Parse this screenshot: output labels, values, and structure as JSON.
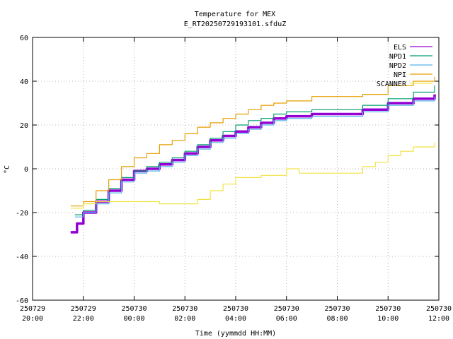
{
  "chart_data": {
    "type": "line",
    "title": "Temperature for MEX",
    "subtitle": "E_RT20250729193101.sfduZ",
    "xlabel": "Time (yymmdd HH:MM)",
    "ylabel": "°C",
    "ylim": [
      -60,
      60
    ],
    "yticks": [
      -60,
      -40,
      -20,
      0,
      20,
      40,
      60
    ],
    "xlim": [
      "2025-07-29 20:00",
      "2025-07-30 12:00"
    ],
    "xticks": [
      {
        "t": "2025-07-29 20:00",
        "l1": "250729",
        "l2": "20:00"
      },
      {
        "t": "2025-07-29 22:00",
        "l1": "250729",
        "l2": "22:00"
      },
      {
        "t": "2025-07-30 00:00",
        "l1": "250730",
        "l2": "00:00"
      },
      {
        "t": "2025-07-30 02:00",
        "l1": "250730",
        "l2": "02:00"
      },
      {
        "t": "2025-07-30 04:00",
        "l1": "250730",
        "l2": "04:00"
      },
      {
        "t": "2025-07-30 06:00",
        "l1": "250730",
        "l2": "06:00"
      },
      {
        "t": "2025-07-30 08:00",
        "l1": "250730",
        "l2": "08:00"
      },
      {
        "t": "2025-07-30 10:00",
        "l1": "250730",
        "l2": "10:00"
      },
      {
        "t": "2025-07-30 12:00",
        "l1": "250730",
        "l2": "12:00"
      }
    ],
    "grid": true,
    "legend": "top-right",
    "series": [
      {
        "name": "ELS",
        "color": "#9400d3",
        "width": 3.5,
        "values": [
          [
            "2025-07-29 21:30",
            -29
          ],
          [
            "2025-07-29 21:45",
            -25
          ],
          [
            "2025-07-29 22:00",
            -20
          ],
          [
            "2025-07-29 22:30",
            -15
          ],
          [
            "2025-07-29 23:00",
            -10
          ],
          [
            "2025-07-29 23:30",
            -5
          ],
          [
            "2025-07-30 00:00",
            -1
          ],
          [
            "2025-07-30 00:30",
            0
          ],
          [
            "2025-07-30 01:00",
            2
          ],
          [
            "2025-07-30 01:30",
            4
          ],
          [
            "2025-07-30 02:00",
            7
          ],
          [
            "2025-07-30 02:30",
            10
          ],
          [
            "2025-07-30 03:00",
            13
          ],
          [
            "2025-07-30 03:30",
            15
          ],
          [
            "2025-07-30 04:00",
            17
          ],
          [
            "2025-07-30 04:30",
            19
          ],
          [
            "2025-07-30 05:00",
            21
          ],
          [
            "2025-07-30 05:30",
            23
          ],
          [
            "2025-07-30 06:00",
            24
          ],
          [
            "2025-07-30 07:00",
            25
          ],
          [
            "2025-07-30 08:00",
            25
          ],
          [
            "2025-07-30 09:00",
            27
          ],
          [
            "2025-07-30 10:00",
            30
          ],
          [
            "2025-07-30 11:00",
            32
          ],
          [
            "2025-07-30 11:50",
            34
          ]
        ]
      },
      {
        "name": "NPD1",
        "color": "#009e73",
        "width": 1.2,
        "values": [
          [
            "2025-07-29 21:40",
            -21
          ],
          [
            "2025-07-29 22:00",
            -19
          ],
          [
            "2025-07-29 22:30",
            -14
          ],
          [
            "2025-07-29 23:00",
            -9
          ],
          [
            "2025-07-29 23:30",
            -4
          ],
          [
            "2025-07-30 00:00",
            -1
          ],
          [
            "2025-07-30 00:30",
            1
          ],
          [
            "2025-07-30 01:00",
            3
          ],
          [
            "2025-07-30 01:30",
            5
          ],
          [
            "2025-07-30 02:00",
            8
          ],
          [
            "2025-07-30 02:30",
            11
          ],
          [
            "2025-07-30 03:00",
            14
          ],
          [
            "2025-07-30 03:30",
            17
          ],
          [
            "2025-07-30 04:00",
            20
          ],
          [
            "2025-07-30 04:30",
            22
          ],
          [
            "2025-07-30 05:00",
            23
          ],
          [
            "2025-07-30 05:30",
            25
          ],
          [
            "2025-07-30 06:00",
            26
          ],
          [
            "2025-07-30 07:00",
            27
          ],
          [
            "2025-07-30 08:00",
            27
          ],
          [
            "2025-07-30 09:00",
            29
          ],
          [
            "2025-07-30 10:00",
            32
          ],
          [
            "2025-07-30 11:00",
            35
          ],
          [
            "2025-07-30 11:50",
            38
          ]
        ]
      },
      {
        "name": "NPD2",
        "color": "#56b4e9",
        "width": 1.2,
        "values": [
          [
            "2025-07-29 21:40",
            -22
          ],
          [
            "2025-07-29 22:00",
            -20
          ],
          [
            "2025-07-29 22:30",
            -16
          ],
          [
            "2025-07-29 23:00",
            -11
          ],
          [
            "2025-07-29 23:30",
            -6
          ],
          [
            "2025-07-30 00:00",
            -2
          ],
          [
            "2025-07-30 00:30",
            -1
          ],
          [
            "2025-07-30 01:00",
            1
          ],
          [
            "2025-07-30 01:30",
            3
          ],
          [
            "2025-07-30 02:00",
            6
          ],
          [
            "2025-07-30 02:30",
            9
          ],
          [
            "2025-07-30 03:00",
            12
          ],
          [
            "2025-07-30 03:30",
            14
          ],
          [
            "2025-07-30 04:00",
            16
          ],
          [
            "2025-07-30 04:30",
            18
          ],
          [
            "2025-07-30 05:00",
            20
          ],
          [
            "2025-07-30 05:30",
            22
          ],
          [
            "2025-07-30 06:00",
            23
          ],
          [
            "2025-07-30 07:00",
            24
          ],
          [
            "2025-07-30 08:00",
            24
          ],
          [
            "2025-07-30 09:00",
            26
          ],
          [
            "2025-07-30 10:00",
            29
          ],
          [
            "2025-07-30 11:00",
            31
          ],
          [
            "2025-07-30 11:50",
            33
          ]
        ]
      },
      {
        "name": "NPI",
        "color": "#e69f00",
        "width": 1.2,
        "values": [
          [
            "2025-07-29 21:30",
            -17
          ],
          [
            "2025-07-29 22:00",
            -15
          ],
          [
            "2025-07-29 22:30",
            -10
          ],
          [
            "2025-07-29 23:00",
            -5
          ],
          [
            "2025-07-29 23:30",
            1
          ],
          [
            "2025-07-30 00:00",
            5
          ],
          [
            "2025-07-30 00:30",
            7
          ],
          [
            "2025-07-30 01:00",
            11
          ],
          [
            "2025-07-30 01:30",
            13
          ],
          [
            "2025-07-30 02:00",
            16
          ],
          [
            "2025-07-30 02:30",
            19
          ],
          [
            "2025-07-30 03:00",
            21
          ],
          [
            "2025-07-30 03:30",
            23
          ],
          [
            "2025-07-30 04:00",
            25
          ],
          [
            "2025-07-30 04:30",
            27
          ],
          [
            "2025-07-30 05:00",
            29
          ],
          [
            "2025-07-30 05:30",
            30
          ],
          [
            "2025-07-30 06:00",
            31
          ],
          [
            "2025-07-30 07:00",
            33
          ],
          [
            "2025-07-30 08:00",
            33
          ],
          [
            "2025-07-30 09:00",
            34
          ],
          [
            "2025-07-30 10:00",
            38
          ],
          [
            "2025-07-30 11:00",
            40
          ],
          [
            "2025-07-30 11:50",
            42
          ]
        ]
      },
      {
        "name": "SCANNER",
        "color": "#f0e442",
        "width": 1.2,
        "values": [
          [
            "2025-07-29 21:30",
            -18
          ],
          [
            "2025-07-29 22:00",
            -16
          ],
          [
            "2025-07-29 22:30",
            -15
          ],
          [
            "2025-07-29 23:00",
            -15
          ],
          [
            "2025-07-30 00:00",
            -15
          ],
          [
            "2025-07-30 01:00",
            -16
          ],
          [
            "2025-07-30 02:00",
            -16
          ],
          [
            "2025-07-30 02:30",
            -14
          ],
          [
            "2025-07-30 03:00",
            -10
          ],
          [
            "2025-07-30 03:30",
            -7
          ],
          [
            "2025-07-30 04:00",
            -4
          ],
          [
            "2025-07-30 05:00",
            -3
          ],
          [
            "2025-07-30 06:00",
            0
          ],
          [
            "2025-07-30 06:30",
            -2
          ],
          [
            "2025-07-30 07:00",
            -2
          ],
          [
            "2025-07-30 08:00",
            -2
          ],
          [
            "2025-07-30 08:30",
            -2
          ],
          [
            "2025-07-30 09:00",
            1
          ],
          [
            "2025-07-30 09:30",
            3
          ],
          [
            "2025-07-30 10:00",
            6
          ],
          [
            "2025-07-30 10:30",
            8
          ],
          [
            "2025-07-30 11:00",
            10
          ],
          [
            "2025-07-30 11:50",
            12
          ]
        ]
      }
    ]
  }
}
